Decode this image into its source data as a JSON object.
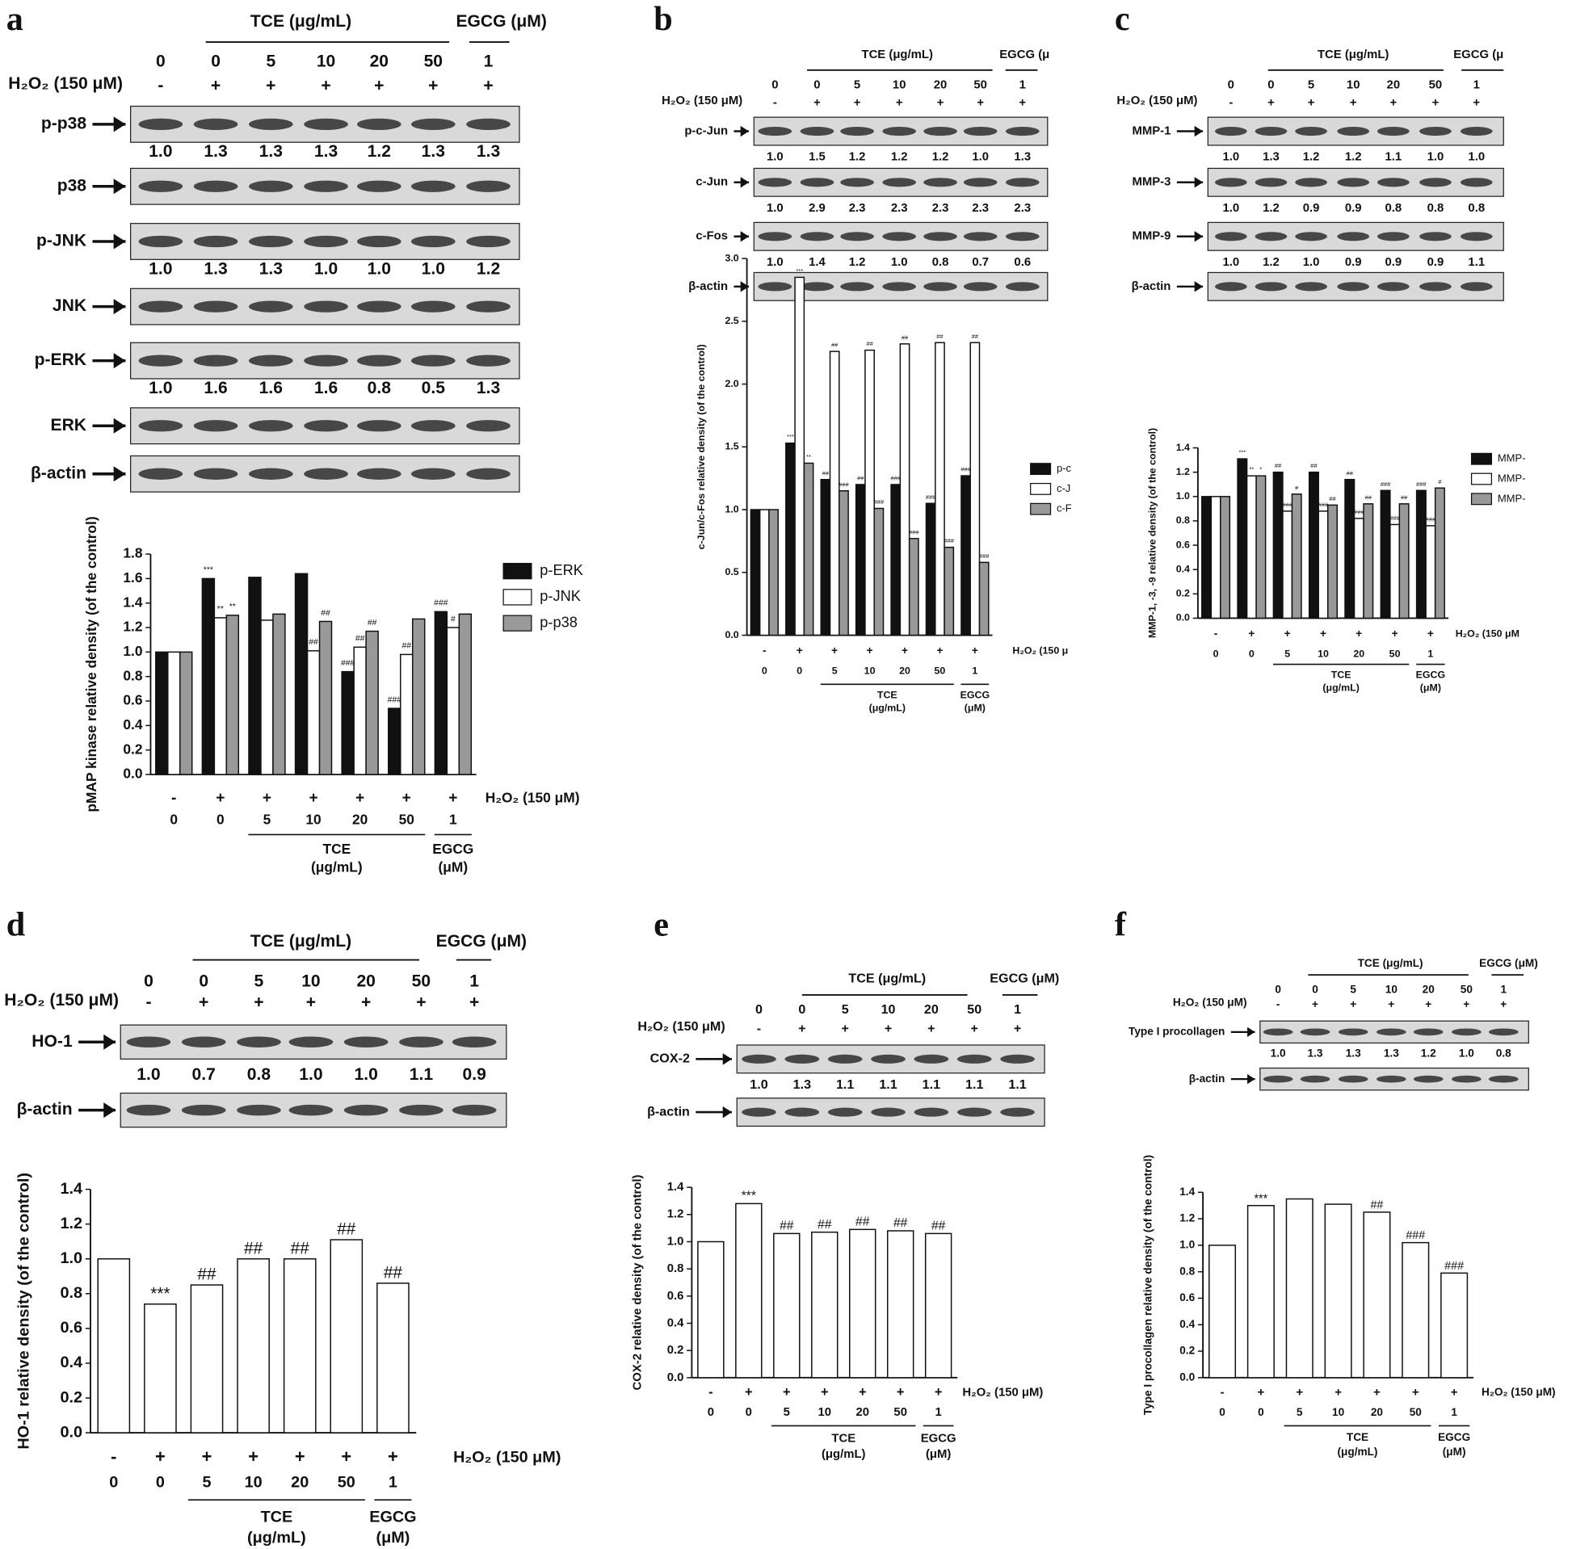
{
  "panels": [
    {
      "label": "a",
      "blot": {
        "tce": "TCE (μg/mL)",
        "egcg": "EGCG (μM)",
        "doses": [
          "0",
          "0",
          "5",
          "10",
          "20",
          "50",
          "1"
        ],
        "h2o2": "H₂O₂ (150 μM)",
        "signs": [
          "-",
          "+",
          "+",
          "+",
          "+",
          "+",
          "+"
        ],
        "rows": [
          {
            "name": "p-p38",
            "densities": [
              "1.0",
              "1.3",
              "1.3",
              "1.3",
              "1.2",
              "1.3",
              "1.3"
            ]
          },
          {
            "name": "p38"
          },
          {
            "name": "p-JNK",
            "densities": [
              "1.0",
              "1.3",
              "1.3",
              "1.0",
              "1.0",
              "1.0",
              "1.2"
            ]
          },
          {
            "name": "JNK"
          },
          {
            "name": "p-ERK",
            "densities": [
              "1.0",
              "1.6",
              "1.6",
              "1.6",
              "0.8",
              "0.5",
              "1.3"
            ]
          },
          {
            "name": "ERK"
          },
          {
            "name": "β-actin"
          }
        ]
      }
    },
    {
      "label": "b",
      "blot": {
        "tce": "TCE (μg/mL)",
        "egcg": "EGCG (μ",
        "doses": [
          "0",
          "0",
          "5",
          "10",
          "20",
          "50",
          "1"
        ],
        "h2o2": "H₂O₂ (150 μM)",
        "signs": [
          "-",
          "+",
          "+",
          "+",
          "+",
          "+",
          "+"
        ],
        "rows": [
          {
            "name": "p-c-Jun",
            "densities": [
              "1.0",
              "1.5",
              "1.2",
              "1.2",
              "1.2",
              "1.0",
              "1.3"
            ]
          },
          {
            "name": "c-Jun",
            "densities": [
              "1.0",
              "2.9",
              "2.3",
              "2.3",
              "2.3",
              "2.3",
              "2.3"
            ]
          },
          {
            "name": "c-Fos",
            "densities": [
              "1.0",
              "1.4",
              "1.2",
              "1.0",
              "0.8",
              "0.7",
              "0.6"
            ]
          },
          {
            "name": "β-actin"
          }
        ]
      }
    },
    {
      "label": "c",
      "blot": {
        "tce": "TCE (μg/mL)",
        "egcg": "EGCG (μ",
        "doses": [
          "0",
          "0",
          "5",
          "10",
          "20",
          "50",
          "1"
        ],
        "h2o2": "H₂O₂ (150 μM)",
        "signs": [
          "-",
          "+",
          "+",
          "+",
          "+",
          "+",
          "+"
        ],
        "rows": [
          {
            "name": "MMP-1",
            "densities": [
              "1.0",
              "1.3",
              "1.2",
              "1.2",
              "1.1",
              "1.0",
              "1.0"
            ]
          },
          {
            "name": "MMP-3",
            "densities": [
              "1.0",
              "1.2",
              "0.9",
              "0.9",
              "0.8",
              "0.8",
              "0.8"
            ]
          },
          {
            "name": "MMP-9",
            "densities": [
              "1.0",
              "1.2",
              "1.0",
              "0.9",
              "0.9",
              "0.9",
              "1.1"
            ]
          },
          {
            "name": "β-actin"
          }
        ]
      }
    },
    {
      "label": "d",
      "blot": {
        "tce": "TCE (μg/mL)",
        "egcg": "EGCG (μM)",
        "doses": [
          "0",
          "0",
          "5",
          "10",
          "20",
          "50",
          "1"
        ],
        "h2o2": "H₂O₂ (150 μM)",
        "signs": [
          "-",
          "+",
          "+",
          "+",
          "+",
          "+",
          "+"
        ],
        "rows": [
          {
            "name": "HO-1",
            "densities": [
              "1.0",
              "0.7",
              "0.8",
              "1.0",
              "1.0",
              "1.1",
              "0.9"
            ]
          },
          {
            "name": "β-actin"
          }
        ]
      }
    },
    {
      "label": "e",
      "blot": {
        "tce": "TCE (μg/mL)",
        "egcg": "EGCG (μM)",
        "doses": [
          "0",
          "0",
          "5",
          "10",
          "20",
          "50",
          "1"
        ],
        "h2o2": "H₂O₂ (150 μM)",
        "signs": [
          "-",
          "+",
          "+",
          "+",
          "+",
          "+",
          "+"
        ],
        "rows": [
          {
            "name": "COX-2",
            "densities": [
              "1.0",
              "1.3",
              "1.1",
              "1.1",
              "1.1",
              "1.1",
              "1.1"
            ]
          },
          {
            "name": "β-actin"
          }
        ]
      }
    },
    {
      "label": "f",
      "blot": {
        "tce": "TCE (μg/mL)",
        "egcg": "EGCG (μM)",
        "doses": [
          "0",
          "0",
          "5",
          "10",
          "20",
          "50",
          "1"
        ],
        "h2o2": "H₂O₂ (150 μM)",
        "signs": [
          "-",
          "+",
          "+",
          "+",
          "+",
          "+",
          "+"
        ],
        "rows": [
          {
            "name": "Type I procollagen",
            "densities": [
              "1.0",
              "1.3",
              "1.3",
              "1.3",
              "1.2",
              "1.0",
              "0.8"
            ]
          },
          {
            "name": "β-actin"
          }
        ]
      }
    }
  ],
  "chart_data": [
    {
      "type": "bar",
      "y_label": "pMAP kinase relative density (of the control)",
      "ylim": [
        0,
        1.8
      ],
      "yticks": [
        {
          "value": 0,
          "label": "0.0"
        },
        {
          "value": 0.2,
          "label": "0.2"
        },
        {
          "value": 0.4,
          "label": "0.4"
        },
        {
          "value": 0.6,
          "label": "0.6"
        },
        {
          "value": 0.8,
          "label": "0.8"
        },
        {
          "value": 1,
          "label": "1.0"
        },
        {
          "value": 1.2,
          "label": "1.2"
        },
        {
          "value": 1.4,
          "label": "1.4"
        },
        {
          "value": 1.6,
          "label": "1.6"
        },
        {
          "value": 1.8,
          "label": "1.8"
        }
      ],
      "categories": [
        "0",
        "0",
        "5",
        "10",
        "20",
        "50",
        "1"
      ],
      "signs": [
        "-",
        "+",
        "+",
        "+",
        "+",
        "+",
        "+"
      ],
      "h2o2": "H₂O₂ (150 μM)",
      "groups": [
        [
          "TCE",
          "(μg/mL)"
        ],
        [
          "EGCG",
          "(μM)"
        ]
      ],
      "series": [
        {
          "name": "p-ERK",
          "color": "#111111",
          "values": [
            1.0,
            1.6,
            1.61,
            1.64,
            0.84,
            0.54,
            1.33
          ],
          "marks": [
            null,
            "***",
            null,
            null,
            "###",
            "###",
            "###"
          ]
        },
        {
          "name": "p-JNK",
          "color": "#ffffff",
          "values": [
            1.0,
            1.28,
            1.26,
            1.01,
            1.04,
            0.98,
            1.2
          ],
          "marks": [
            null,
            "**",
            null,
            "##",
            "##",
            "##",
            "#"
          ]
        },
        {
          "name": "p-p38",
          "color": "#999999",
          "values": [
            1.0,
            1.3,
            1.31,
            1.25,
            1.17,
            1.27,
            1.31
          ],
          "marks": [
            null,
            "**",
            null,
            "##",
            "##",
            null,
            null
          ]
        }
      ]
    },
    {
      "type": "bar",
      "y_label": "c-Jun/c-Fos relative density (of the control)",
      "ylim": [
        0,
        3
      ],
      "yticks": [
        {
          "value": 0,
          "label": "0.0"
        },
        {
          "value": 0.5,
          "label": "0.5"
        },
        {
          "value": 1,
          "label": "1.0"
        },
        {
          "value": 1.5,
          "label": "1.5"
        },
        {
          "value": 2,
          "label": "2.0"
        },
        {
          "value": 2.5,
          "label": "2.5"
        },
        {
          "value": 3,
          "label": "3.0"
        }
      ],
      "categories": [
        "0",
        "0",
        "5",
        "10",
        "20",
        "50",
        "1"
      ],
      "signs": [
        "-",
        "+",
        "+",
        "+",
        "+",
        "+",
        "+"
      ],
      "h2o2": "H₂O₂ (150 μ",
      "groups": [
        [
          "TCE",
          "(μg/mL)"
        ],
        [
          "EGCG",
          "(μM)"
        ]
      ],
      "series": [
        {
          "name": "p-c",
          "color": "#111111",
          "values": [
            1.0,
            1.53,
            1.24,
            1.2,
            1.2,
            1.05,
            1.27
          ],
          "marks": [
            null,
            "***",
            "##",
            "##",
            "###",
            "###",
            "###"
          ]
        },
        {
          "name": "c-J",
          "color": "#ffffff",
          "values": [
            1.0,
            2.85,
            2.26,
            2.27,
            2.32,
            2.33,
            2.33
          ],
          "marks": [
            null,
            "***",
            "##",
            "##",
            "##",
            "##",
            "##"
          ]
        },
        {
          "name": "c-F",
          "color": "#999999",
          "values": [
            1.0,
            1.37,
            1.15,
            1.01,
            0.77,
            0.7,
            0.58
          ],
          "marks": [
            null,
            "**",
            "###",
            "###",
            "###",
            "###",
            "###"
          ]
        }
      ]
    },
    {
      "type": "bar",
      "y_label": "MMP-1, -3, -9 relative density (of the control)",
      "ylim": [
        0,
        1.4
      ],
      "yticks": [
        {
          "value": 0,
          "label": "0.0"
        },
        {
          "value": 0.2,
          "label": "0.2"
        },
        {
          "value": 0.4,
          "label": "0.4"
        },
        {
          "value": 0.6,
          "label": "0.6"
        },
        {
          "value": 0.8,
          "label": "0.8"
        },
        {
          "value": 1,
          "label": "1.0"
        },
        {
          "value": 1.2,
          "label": "1.2"
        },
        {
          "value": 1.4,
          "label": "1.4"
        }
      ],
      "categories": [
        "0",
        "0",
        "5",
        "10",
        "20",
        "50",
        "1"
      ],
      "signs": [
        "-",
        "+",
        "+",
        "+",
        "+",
        "+",
        "+"
      ],
      "h2o2": "H₂O₂ (150 μM",
      "groups": [
        [
          "TCE",
          "(μg/mL)"
        ],
        [
          "EGCG",
          "(μM)"
        ]
      ],
      "series": [
        {
          "name": "MMP-",
          "color": "#111111",
          "values": [
            1.0,
            1.31,
            1.2,
            1.2,
            1.14,
            1.05,
            1.05
          ],
          "marks": [
            null,
            "***",
            "##",
            "##",
            "##",
            "###",
            "###"
          ]
        },
        {
          "name": "MMP-",
          "color": "#ffffff",
          "values": [
            1.0,
            1.17,
            0.88,
            0.88,
            0.82,
            0.77,
            0.76
          ],
          "marks": [
            null,
            "**",
            "###",
            "###",
            "###",
            "###",
            "###"
          ]
        },
        {
          "name": "MMP-",
          "color": "#999999",
          "values": [
            1.0,
            1.17,
            1.02,
            0.93,
            0.94,
            0.94,
            1.07
          ],
          "marks": [
            null,
            "*",
            "#",
            "##",
            "##",
            "##",
            "#"
          ]
        }
      ]
    },
    {
      "type": "bar",
      "y_label": "HO-1 relative density (of the control)",
      "ylim": [
        0,
        1.4
      ],
      "yticks": [
        {
          "value": 0,
          "label": "0.0"
        },
        {
          "value": 0.2,
          "label": "0.2"
        },
        {
          "value": 0.4,
          "label": "0.4"
        },
        {
          "value": 0.6,
          "label": "0.6"
        },
        {
          "value": 0.8,
          "label": "0.8"
        },
        {
          "value": 1,
          "label": "1.0"
        },
        {
          "value": 1.2,
          "label": "1.2"
        },
        {
          "value": 1.4,
          "label": "1.4"
        }
      ],
      "categories": [
        "0",
        "0",
        "5",
        "10",
        "20",
        "50",
        "1"
      ],
      "signs": [
        "-",
        "+",
        "+",
        "+",
        "+",
        "+",
        "+"
      ],
      "h2o2": "H₂O₂ (150 μM)",
      "groups": [
        [
          "TCE",
          "(μg/mL)"
        ],
        [
          "EGCG",
          "(μM)"
        ]
      ],
      "color": "#ffffff",
      "values": [
        1.0,
        0.74,
        0.85,
        1.0,
        1.0,
        1.11,
        0.86
      ],
      "marks": [
        null,
        "***",
        "##",
        "##",
        "##",
        "##",
        "##"
      ]
    },
    {
      "type": "bar",
      "y_label": "COX-2 relative density (of the control)",
      "ylim": [
        0,
        1.4
      ],
      "yticks": [
        {
          "value": 0,
          "label": "0.0"
        },
        {
          "value": 0.2,
          "label": "0.2"
        },
        {
          "value": 0.4,
          "label": "0.4"
        },
        {
          "value": 0.6,
          "label": "0.6"
        },
        {
          "value": 0.8,
          "label": "0.8"
        },
        {
          "value": 1,
          "label": "1.0"
        },
        {
          "value": 1.2,
          "label": "1.2"
        },
        {
          "value": 1.4,
          "label": "1.4"
        }
      ],
      "categories": [
        "0",
        "0",
        "5",
        "10",
        "20",
        "50",
        "1"
      ],
      "signs": [
        "-",
        "+",
        "+",
        "+",
        "+",
        "+",
        "+"
      ],
      "h2o2": "H₂O₂ (150 μM)",
      "groups": [
        [
          "TCE",
          "(μg/mL)"
        ],
        [
          "EGCG",
          "(μM)"
        ]
      ],
      "color": "#ffffff",
      "values": [
        1.0,
        1.28,
        1.06,
        1.07,
        1.09,
        1.08,
        1.06
      ],
      "marks": [
        null,
        "***",
        "##",
        "##",
        "##",
        "##",
        "##"
      ]
    },
    {
      "type": "bar",
      "y_label": "Type I procollagen relative density (of the control)",
      "ylim": [
        0,
        1.4
      ],
      "yticks": [
        {
          "value": 0,
          "label": "0.0"
        },
        {
          "value": 0.2,
          "label": "0.2"
        },
        {
          "value": 0.4,
          "label": "0.4"
        },
        {
          "value": 0.6,
          "label": "0.6"
        },
        {
          "value": 0.8,
          "label": "0.8"
        },
        {
          "value": 1,
          "label": "1.0"
        },
        {
          "value": 1.2,
          "label": "1.2"
        },
        {
          "value": 1.4,
          "label": "1.4"
        }
      ],
      "categories": [
        "0",
        "0",
        "5",
        "10",
        "20",
        "50",
        "1"
      ],
      "signs": [
        "-",
        "+",
        "+",
        "+",
        "+",
        "+",
        "+"
      ],
      "h2o2": "H₂O₂ (150 μM)",
      "groups": [
        [
          "TCE",
          "(μg/mL)"
        ],
        [
          "EGCG",
          "(μM)"
        ]
      ],
      "color": "#ffffff",
      "values": [
        1.0,
        1.3,
        1.35,
        1.31,
        1.25,
        1.02,
        0.79
      ],
      "marks": [
        null,
        "***",
        null,
        null,
        "##",
        "###",
        "###"
      ]
    }
  ]
}
